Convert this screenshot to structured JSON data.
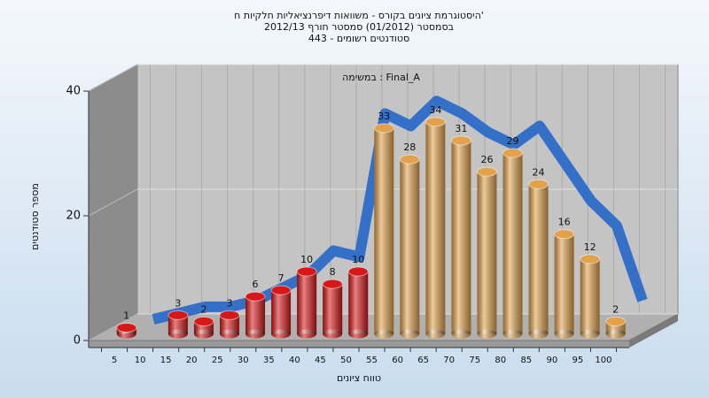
{
  "chart_data": {
    "type": "bar",
    "title": [
      "היסטוגרמת ציונים בקורס - משוואות דיפרנציאליות חלקיות ח'",
      "בסמסטר (01/2012) סמסטר חורף 2012/13",
      "סטודנטים רשומים - 443"
    ],
    "annotation": "במשימה : Final_A",
    "x_label": "טווח ציונים",
    "y_label": "מספר סטודנטים",
    "categories": [
      5,
      10,
      15,
      20,
      25,
      30,
      35,
      40,
      45,
      50,
      55,
      60,
      65,
      70,
      75,
      80,
      85,
      90,
      95,
      100
    ],
    "values": [
      1,
      null,
      3,
      2,
      3,
      6,
      7,
      10,
      8,
      10,
      33,
      28,
      34,
      31,
      26,
      29,
      24,
      16,
      12,
      2
    ],
    "colors": [
      "#d81818",
      "#d81818",
      "#d81818",
      "#d81818",
      "#d81818",
      "#d81818",
      "#d81818",
      "#d81818",
      "#d81818",
      "#d81818",
      "#e2a24c",
      "#e2a24c",
      "#e2a24c",
      "#e2a24c",
      "#e2a24c",
      "#e2a24c",
      "#e2a24c",
      "#e2a24c",
      "#e2a24c",
      "#e2a24c"
    ],
    "trend": {
      "color": "#3570c8",
      "values": [
        0,
        1,
        2,
        2,
        3,
        5,
        7,
        11,
        10,
        33,
        31,
        35,
        33,
        30,
        28,
        31,
        25,
        19,
        15,
        3
      ]
    },
    "ylim": [
      0,
      40
    ],
    "yticks": [
      0,
      20,
      40
    ],
    "grid": true
  }
}
